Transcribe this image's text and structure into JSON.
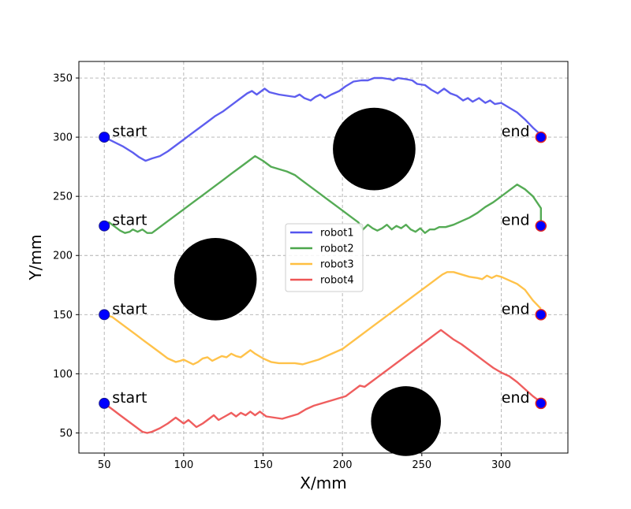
{
  "chart_data": {
    "type": "line",
    "xlabel": "X/mm",
    "ylabel": "Y/mm",
    "xlim": [
      34,
      342
    ],
    "ylim": [
      33,
      364
    ],
    "xticks": [
      50,
      100,
      150,
      200,
      250,
      300
    ],
    "yticks": [
      50,
      100,
      150,
      200,
      250,
      300,
      350
    ],
    "grid": true,
    "legend_position": "center",
    "obstacles": [
      {
        "x": 220,
        "y": 290,
        "r": 26
      },
      {
        "x": 120,
        "y": 180,
        "r": 26
      },
      {
        "x": 240,
        "y": 60,
        "r": 22
      }
    ],
    "series": [
      {
        "name": "robot1",
        "color": "#5555ee",
        "points": [
          [
            50,
            300
          ],
          [
            56,
            296
          ],
          [
            62,
            292
          ],
          [
            68,
            287
          ],
          [
            72,
            283
          ],
          [
            76,
            280
          ],
          [
            80,
            282
          ],
          [
            85,
            284
          ],
          [
            90,
            288
          ],
          [
            95,
            293
          ],
          [
            100,
            298
          ],
          [
            105,
            303
          ],
          [
            110,
            308
          ],
          [
            115,
            313
          ],
          [
            120,
            318
          ],
          [
            125,
            322
          ],
          [
            130,
            327
          ],
          [
            135,
            332
          ],
          [
            140,
            337
          ],
          [
            143,
            339
          ],
          [
            146,
            336
          ],
          [
            149,
            339
          ],
          [
            151,
            341
          ],
          [
            154,
            338
          ],
          [
            160,
            336
          ],
          [
            165,
            335
          ],
          [
            170,
            334
          ],
          [
            173,
            336
          ],
          [
            176,
            333
          ],
          [
            180,
            331
          ],
          [
            183,
            334
          ],
          [
            186,
            336
          ],
          [
            189,
            333
          ],
          [
            193,
            336
          ],
          [
            198,
            339
          ],
          [
            202,
            343
          ],
          [
            207,
            347
          ],
          [
            212,
            348
          ],
          [
            216,
            348
          ],
          [
            220,
            350
          ],
          [
            225,
            350
          ],
          [
            230,
            349
          ],
          [
            232,
            348
          ],
          [
            235,
            350
          ],
          [
            240,
            349
          ],
          [
            244,
            348
          ],
          [
            247,
            345
          ],
          [
            252,
            344
          ],
          [
            256,
            340
          ],
          [
            260,
            337
          ],
          [
            264,
            341
          ],
          [
            268,
            337
          ],
          [
            272,
            335
          ],
          [
            276,
            331
          ],
          [
            279,
            333
          ],
          [
            282,
            330
          ],
          [
            286,
            333
          ],
          [
            290,
            329
          ],
          [
            293,
            331
          ],
          [
            296,
            328
          ],
          [
            300,
            329
          ],
          [
            305,
            325
          ],
          [
            310,
            321
          ],
          [
            315,
            315
          ],
          [
            320,
            308
          ],
          [
            325,
            302
          ]
        ]
      },
      {
        "name": "robot2",
        "color": "#4ca64c",
        "points": [
          [
            50,
            225
          ],
          [
            53,
            228
          ],
          [
            57,
            224
          ],
          [
            60,
            221
          ],
          [
            63,
            219
          ],
          [
            66,
            220
          ],
          [
            68,
            222
          ],
          [
            71,
            220
          ],
          [
            74,
            222
          ],
          [
            77,
            219
          ],
          [
            80,
            219
          ],
          [
            85,
            224
          ],
          [
            90,
            229
          ],
          [
            95,
            234
          ],
          [
            100,
            239
          ],
          [
            105,
            244
          ],
          [
            110,
            249
          ],
          [
            115,
            254
          ],
          [
            120,
            259
          ],
          [
            125,
            264
          ],
          [
            130,
            269
          ],
          [
            135,
            274
          ],
          [
            140,
            279
          ],
          [
            145,
            284
          ],
          [
            150,
            280
          ],
          [
            155,
            275
          ],
          [
            160,
            273
          ],
          [
            165,
            271
          ],
          [
            170,
            268
          ],
          [
            175,
            263
          ],
          [
            180,
            258
          ],
          [
            185,
            253
          ],
          [
            190,
            248
          ],
          [
            195,
            243
          ],
          [
            200,
            238
          ],
          [
            205,
            233
          ],
          [
            210,
            228
          ],
          [
            213,
            222
          ],
          [
            216,
            226
          ],
          [
            219,
            223
          ],
          [
            222,
            221
          ],
          [
            225,
            223
          ],
          [
            228,
            226
          ],
          [
            231,
            222
          ],
          [
            234,
            225
          ],
          [
            237,
            223
          ],
          [
            240,
            226
          ],
          [
            243,
            222
          ],
          [
            246,
            220
          ],
          [
            249,
            223
          ],
          [
            252,
            219
          ],
          [
            255,
            222
          ],
          [
            258,
            222
          ],
          [
            261,
            224
          ],
          [
            265,
            224
          ],
          [
            270,
            226
          ],
          [
            275,
            229
          ],
          [
            280,
            232
          ],
          [
            285,
            236
          ],
          [
            290,
            241
          ],
          [
            295,
            245
          ],
          [
            300,
            250
          ],
          [
            305,
            255
          ],
          [
            310,
            260
          ],
          [
            315,
            256
          ],
          [
            320,
            250
          ],
          [
            325,
            240
          ],
          [
            325,
            230
          ],
          [
            325,
            225
          ]
        ]
      },
      {
        "name": "robot3",
        "color": "#ffbf40",
        "points": [
          [
            50,
            150
          ],
          [
            55,
            148
          ],
          [
            60,
            143
          ],
          [
            65,
            138
          ],
          [
            70,
            133
          ],
          [
            75,
            128
          ],
          [
            80,
            123
          ],
          [
            85,
            118
          ],
          [
            90,
            113
          ],
          [
            95,
            110
          ],
          [
            98,
            111
          ],
          [
            100,
            112
          ],
          [
            103,
            110
          ],
          [
            106,
            108
          ],
          [
            109,
            110
          ],
          [
            112,
            113
          ],
          [
            115,
            114
          ],
          [
            118,
            111
          ],
          [
            121,
            113
          ],
          [
            124,
            115
          ],
          [
            127,
            114
          ],
          [
            130,
            117
          ],
          [
            133,
            115
          ],
          [
            136,
            114
          ],
          [
            139,
            117
          ],
          [
            142,
            120
          ],
          [
            145,
            117
          ],
          [
            150,
            113
          ],
          [
            155,
            110
          ],
          [
            160,
            109
          ],
          [
            165,
            109
          ],
          [
            170,
            109
          ],
          [
            175,
            108
          ],
          [
            180,
            110
          ],
          [
            185,
            112
          ],
          [
            190,
            115
          ],
          [
            195,
            118
          ],
          [
            200,
            121
          ],
          [
            205,
            126
          ],
          [
            210,
            131
          ],
          [
            215,
            136
          ],
          [
            220,
            141
          ],
          [
            225,
            146
          ],
          [
            230,
            151
          ],
          [
            235,
            156
          ],
          [
            240,
            161
          ],
          [
            245,
            166
          ],
          [
            250,
            171
          ],
          [
            255,
            176
          ],
          [
            260,
            181
          ],
          [
            263,
            184
          ],
          [
            266,
            186
          ],
          [
            270,
            186
          ],
          [
            275,
            184
          ],
          [
            280,
            182
          ],
          [
            285,
            181
          ],
          [
            288,
            180
          ],
          [
            291,
            183
          ],
          [
            294,
            181
          ],
          [
            297,
            183
          ],
          [
            300,
            182
          ],
          [
            305,
            179
          ],
          [
            310,
            176
          ],
          [
            315,
            171
          ],
          [
            320,
            162
          ],
          [
            325,
            155
          ]
        ]
      },
      {
        "name": "robot4",
        "color": "#ee5555",
        "points": [
          [
            50,
            75
          ],
          [
            55,
            70
          ],
          [
            60,
            65
          ],
          [
            65,
            60
          ],
          [
            70,
            55
          ],
          [
            74,
            51
          ],
          [
            77,
            50
          ],
          [
            80,
            51
          ],
          [
            85,
            54
          ],
          [
            90,
            58
          ],
          [
            95,
            63
          ],
          [
            100,
            58
          ],
          [
            103,
            61
          ],
          [
            108,
            55
          ],
          [
            112,
            58
          ],
          [
            116,
            62
          ],
          [
            119,
            65
          ],
          [
            122,
            61
          ],
          [
            126,
            64
          ],
          [
            130,
            67
          ],
          [
            133,
            64
          ],
          [
            136,
            67
          ],
          [
            139,
            65
          ],
          [
            142,
            68
          ],
          [
            145,
            65
          ],
          [
            148,
            68
          ],
          [
            152,
            64
          ],
          [
            157,
            63
          ],
          [
            162,
            62
          ],
          [
            167,
            64
          ],
          [
            172,
            66
          ],
          [
            177,
            70
          ],
          [
            182,
            73
          ],
          [
            187,
            75
          ],
          [
            192,
            77
          ],
          [
            197,
            79
          ],
          [
            202,
            81
          ],
          [
            207,
            86
          ],
          [
            211,
            90
          ],
          [
            214,
            89
          ],
          [
            218,
            93
          ],
          [
            222,
            97
          ],
          [
            226,
            101
          ],
          [
            230,
            105
          ],
          [
            234,
            109
          ],
          [
            238,
            113
          ],
          [
            242,
            117
          ],
          [
            246,
            121
          ],
          [
            250,
            125
          ],
          [
            254,
            129
          ],
          [
            258,
            133
          ],
          [
            262,
            137
          ],
          [
            266,
            133
          ],
          [
            270,
            129
          ],
          [
            275,
            125
          ],
          [
            280,
            120
          ],
          [
            285,
            115
          ],
          [
            290,
            110
          ],
          [
            295,
            105
          ],
          [
            300,
            101
          ],
          [
            305,
            98
          ],
          [
            310,
            93
          ],
          [
            315,
            87
          ],
          [
            320,
            81
          ],
          [
            325,
            76
          ]
        ]
      }
    ],
    "start_points": [
      [
        50,
        300
      ],
      [
        50,
        225
      ],
      [
        50,
        150
      ],
      [
        50,
        75
      ]
    ],
    "end_points": [
      [
        325,
        300
      ],
      [
        325,
        225
      ],
      [
        325,
        150
      ],
      [
        325,
        75
      ]
    ],
    "start_label": "start",
    "end_label": "end",
    "marker_color": "#0000ff",
    "end_marker_edge": "#dd2222",
    "obstacle_color": "#000000"
  }
}
